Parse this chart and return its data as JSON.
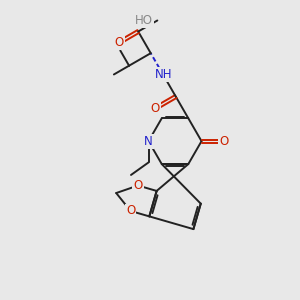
{
  "bg_color": "#e8e8e8",
  "bond_color": "#222222",
  "bond_width": 1.4,
  "dbo": 0.055,
  "atom_colors": {
    "C": "#222222",
    "O": "#cc2200",
    "N": "#2222cc",
    "H": "#888888"
  },
  "font_size": 8.5,
  "fig_size": [
    3.0,
    3.0
  ],
  "dpi": 100
}
